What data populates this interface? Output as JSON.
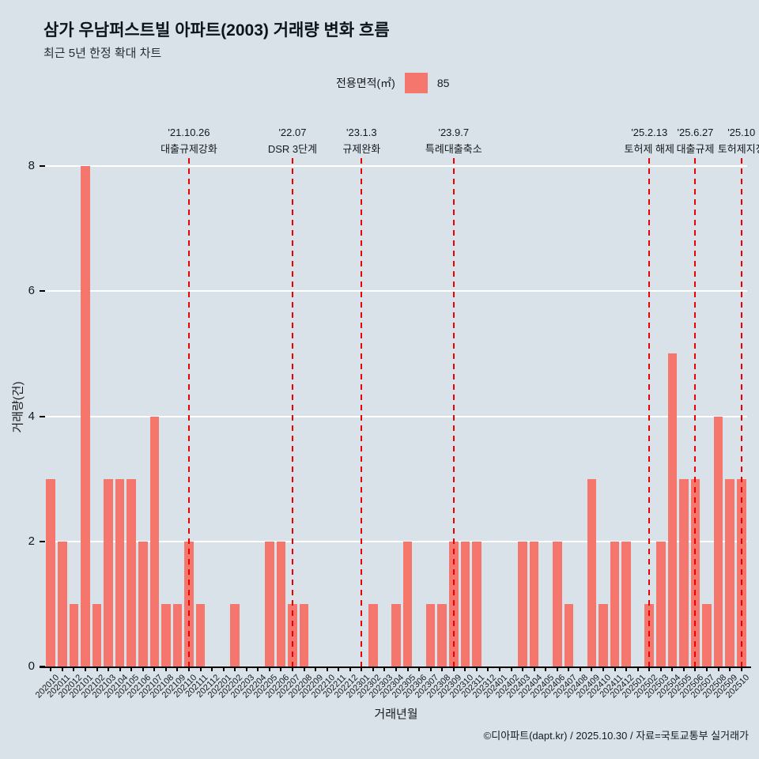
{
  "title": "삼가 우남퍼스트빌 아파트(2003) 거래량 변화 흐름",
  "subtitle": "최근 5년 한정 확대 차트",
  "legend": {
    "label": "전용면적(㎡)",
    "value": "85"
  },
  "footer": "©디아파트(dapt.kr) / 2025.10.30 / 자료=국토교통부 실거래가",
  "colors": {
    "background": "#d9e2e8",
    "bar": "#f4766d",
    "event_line": "#ee0000",
    "grid": "#ffffff"
  },
  "chart_data": {
    "type": "bar",
    "title": "삼가 우남퍼스트빌 아파트(2003) 거래량 변화 흐름",
    "xlabel": "거래년월",
    "ylabel": "거래량(건)",
    "ylim": [
      0,
      8
    ],
    "yticks": [
      0,
      2,
      4,
      6,
      8
    ],
    "grid": "horizontal-white",
    "legend_position": "top-center",
    "categories": [
      "202010",
      "202011",
      "202012",
      "202101",
      "202102",
      "202103",
      "202104",
      "202105",
      "202106",
      "202107",
      "202108",
      "202109",
      "202110",
      "202111",
      "202112",
      "202201",
      "202202",
      "202203",
      "202204",
      "202205",
      "202206",
      "202207",
      "202208",
      "202209",
      "202210",
      "202211",
      "202212",
      "202301",
      "202302",
      "202303",
      "202304",
      "202305",
      "202306",
      "202307",
      "202308",
      "202309",
      "202310",
      "202311",
      "202312",
      "202401",
      "202402",
      "202403",
      "202404",
      "202405",
      "202406",
      "202407",
      "202408",
      "202409",
      "202410",
      "202411",
      "202412",
      "202501",
      "202502",
      "202503",
      "202504",
      "202505",
      "202506",
      "202507",
      "202508",
      "202509",
      "202510"
    ],
    "series": [
      {
        "name": "85",
        "values": [
          3,
          2,
          1,
          8,
          1,
          3,
          3,
          3,
          2,
          4,
          1,
          1,
          2,
          1,
          0,
          0,
          1,
          0,
          0,
          2,
          2,
          1,
          1,
          0,
          0,
          0,
          0,
          0,
          1,
          0,
          1,
          2,
          0,
          1,
          1,
          2,
          2,
          2,
          0,
          0,
          0,
          2,
          2,
          0,
          2,
          1,
          0,
          3,
          1,
          2,
          2,
          0,
          1,
          2,
          5,
          3,
          3,
          1,
          4,
          3,
          3
        ]
      }
    ],
    "events": [
      {
        "category": "202110",
        "date": "'21.10.26",
        "label": "대출규제강화"
      },
      {
        "category": "202207",
        "date": "'22.07",
        "label": "DSR 3단계"
      },
      {
        "category": "202301",
        "date": "'23.1.3",
        "label": "규제완화"
      },
      {
        "category": "202309",
        "date": "'23.9.7",
        "label": "특례대출축소"
      },
      {
        "category": "202502",
        "date": "'25.2.13",
        "label": "토허제 해제"
      },
      {
        "category": "202506",
        "date": "'25.6.27",
        "label": "대출규제"
      },
      {
        "category": "202510",
        "date": "'25.10",
        "label": "토허제지정"
      }
    ]
  }
}
